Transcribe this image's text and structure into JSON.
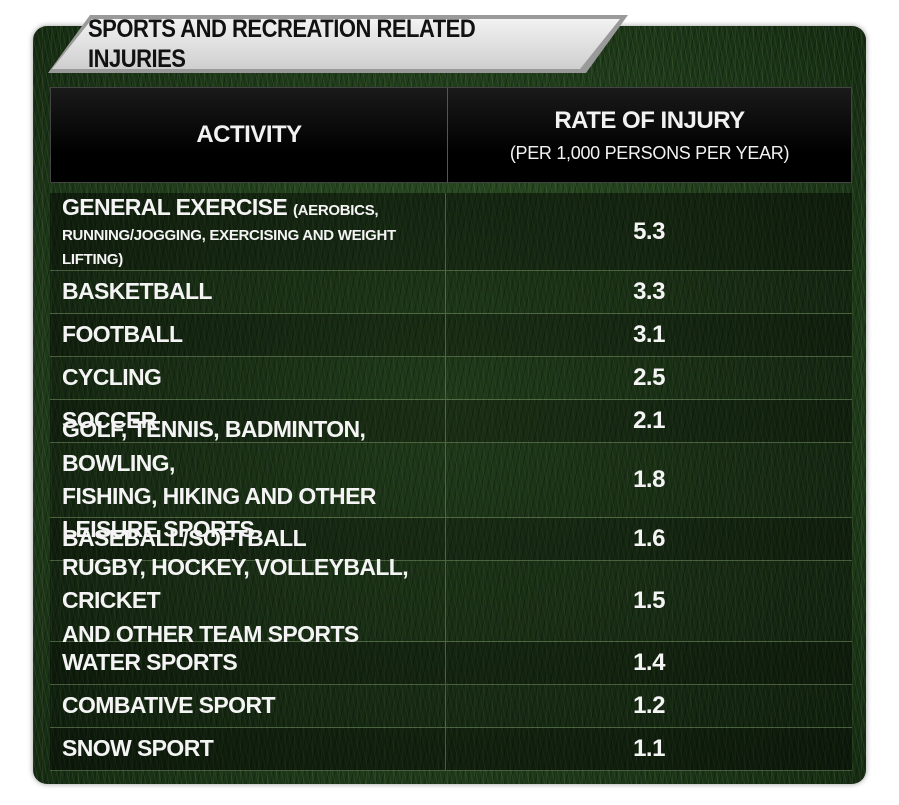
{
  "chart_data": {
    "type": "table",
    "title": "SPORTS AND RECREATION RELATED INJURIES",
    "columns": {
      "activity": "ACTIVITY",
      "rate": "RATE OF INJURY",
      "rate_sub": "(PER 1,000 PERSONS PER YEAR)"
    },
    "rows": [
      {
        "activity": "GENERAL EXERCISE",
        "note": "(AEROBICS,",
        "line2": "RUNNING/JOGGING, EXERCISING AND WEIGHT LIFTING)",
        "rate": "5.3"
      },
      {
        "activity": "BASKETBALL",
        "rate": "3.3"
      },
      {
        "activity": "FOOTBALL",
        "rate": "3.1"
      },
      {
        "activity": "CYCLING",
        "rate": "2.5"
      },
      {
        "activity": "SOCCER",
        "rate": "2.1"
      },
      {
        "activity": "GOLF, TENNIS, BADMINTON, BOWLING,",
        "line2": "FISHING, HIKING AND OTHER LEISURE SPORTS",
        "rate": "1.8"
      },
      {
        "activity": "BASEBALL/SOFTBALL",
        "rate": "1.6"
      },
      {
        "activity": "RUGBY, HOCKEY, VOLLEYBALL, CRICKET",
        "line2": "AND OTHER TEAM SPORTS",
        "rate": "1.5"
      },
      {
        "activity": "WATER SPORTS",
        "rate": "1.4"
      },
      {
        "activity": "COMBATIVE SPORT",
        "rate": "1.2"
      },
      {
        "activity": "SNOW SPORT",
        "rate": "1.1"
      }
    ]
  }
}
